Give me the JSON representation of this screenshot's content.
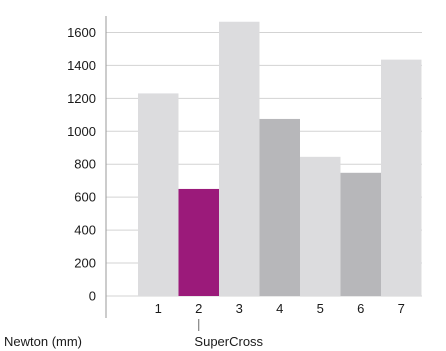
{
  "chart_data": {
    "type": "bar",
    "categories": [
      "1",
      "2",
      "3",
      "4",
      "5",
      "6",
      "7"
    ],
    "values": [
      1230,
      650,
      1665,
      1075,
      845,
      748,
      1435
    ],
    "bar_colors": [
      "#dcdcde",
      "#9b1a7a",
      "#dcdcde",
      "#b7b7ba",
      "#dcdcde",
      "#b7b7ba",
      "#dcdcde"
    ],
    "ylim": [
      0,
      1700
    ],
    "yticks": [
      0,
      200,
      400,
      600,
      800,
      1000,
      1200,
      1400,
      1600
    ],
    "grid": true,
    "grid_color": "#d3d3d3",
    "xlabel": "Newton (mm)",
    "highlight_label": "SuperCross",
    "highlight_category": "2"
  }
}
